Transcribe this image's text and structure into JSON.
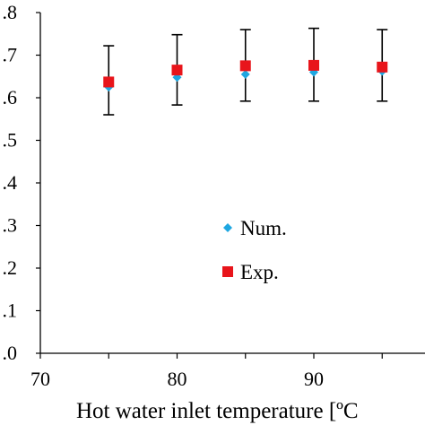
{
  "chart_data": {
    "type": "scatter",
    "xlabel": "Hot water inlet temperature [ºC",
    "ylabel": "",
    "xlim": [
      70,
      95
    ],
    "ylim": [
      0.0,
      0.8
    ],
    "grid": false,
    "legend_position": "center-right",
    "xticks": [
      "70",
      "80",
      "90"
    ],
    "yticks": [
      ".0",
      ".1",
      ".2",
      ".3",
      ".4",
      ".5",
      ".6",
      ".7",
      ".8"
    ],
    "series": [
      {
        "name": "Num.",
        "marker": "diamond",
        "color": "#1ea7e1",
        "points": [
          {
            "x": 75,
            "y": 0.625
          },
          {
            "x": 80,
            "y": 0.648
          },
          {
            "x": 85,
            "y": 0.655
          },
          {
            "x": 90,
            "y": 0.66
          },
          {
            "x": 95,
            "y": 0.662
          }
        ]
      },
      {
        "name": "Exp.",
        "marker": "square",
        "color": "#e8151b",
        "points": [
          {
            "x": 75,
            "y": 0.637,
            "err_low": 0.56,
            "err_high": 0.722
          },
          {
            "x": 80,
            "y": 0.665,
            "err_low": 0.583,
            "err_high": 0.748
          },
          {
            "x": 85,
            "y": 0.675,
            "err_low": 0.592,
            "err_high": 0.76
          },
          {
            "x": 90,
            "y": 0.676,
            "err_low": 0.592,
            "err_high": 0.763
          },
          {
            "x": 95,
            "y": 0.672,
            "err_low": 0.592,
            "err_high": 0.76
          }
        ]
      }
    ]
  }
}
